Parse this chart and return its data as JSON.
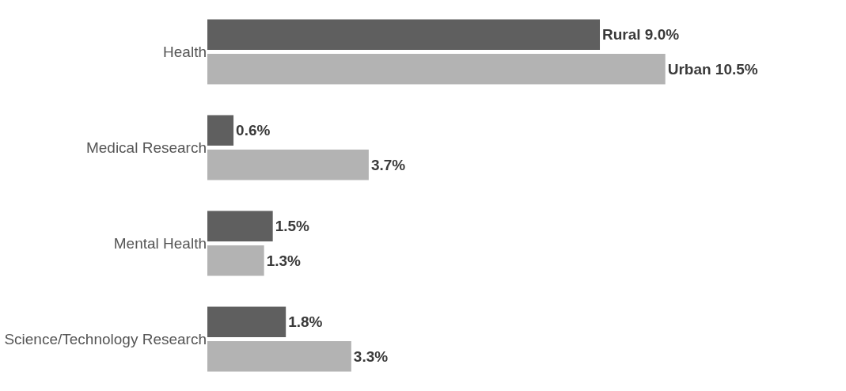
{
  "chart_data": {
    "type": "bar",
    "orientation": "horizontal",
    "categories": [
      "Health",
      "Medical Research",
      "Mental Health",
      "Science/Technology Research"
    ],
    "series": [
      {
        "name": "Rural",
        "color": "#5f5f5f",
        "values": [
          9.0,
          0.6,
          1.5,
          1.8
        ],
        "value_labels": [
          "9.0%",
          "0.6%",
          "1.5%",
          "1.8%"
        ]
      },
      {
        "name": "Urban",
        "color": "#b3b3b3",
        "values": [
          10.5,
          3.7,
          1.3,
          3.3
        ],
        "value_labels": [
          "10.5%",
          "3.7%",
          "1.3%",
          "3.3%"
        ]
      }
    ],
    "tick_labels": "y",
    "legend": false
  }
}
